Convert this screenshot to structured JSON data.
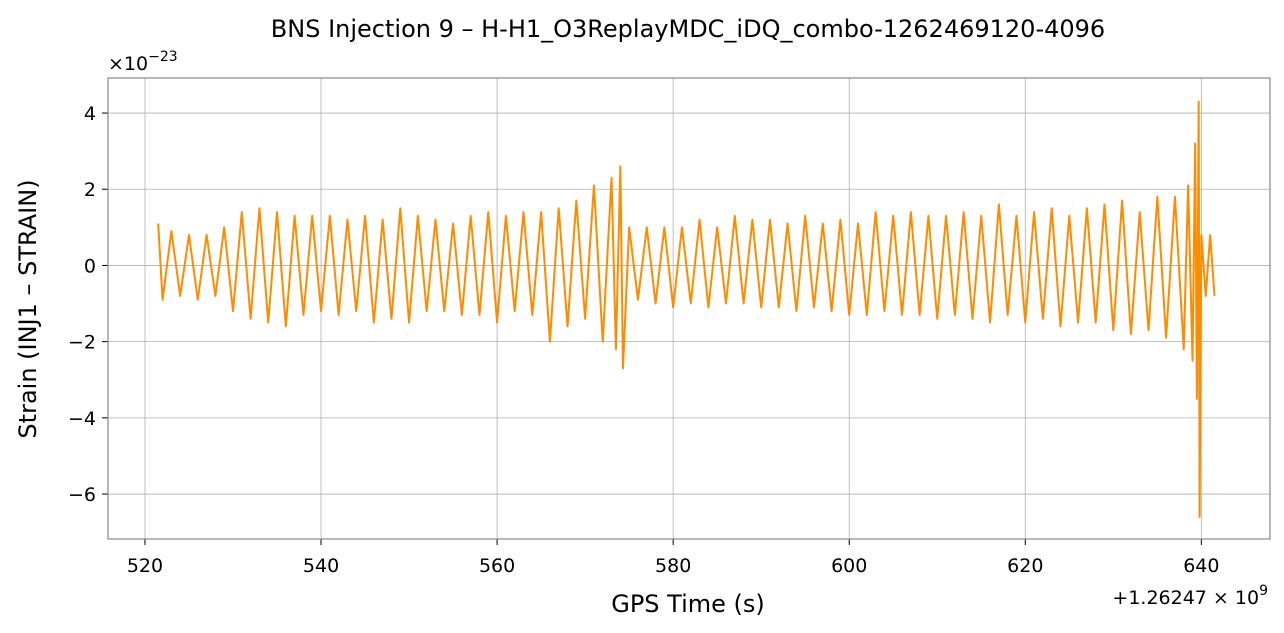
{
  "chart_data": {
    "type": "line",
    "title": "BNS Injection 9 – H-H1_O3ReplayMDC_iDQ_combo-1262469120-4096",
    "xlabel": "GPS Time (s)",
    "ylabel": "Strain (INJ1 – STRAIN)",
    "y_scale_label": {
      "base": "×10",
      "exponent": "−23"
    },
    "x_offset_label": {
      "base": "+1.26247 × 10",
      "exponent": "9"
    },
    "grid": true,
    "xlim": [
      515.8,
      647.8
    ],
    "ylim": [
      -7.18,
      4.92
    ],
    "xticks": [
      520,
      540,
      560,
      580,
      600,
      620,
      640
    ],
    "yticks": [
      {
        "value": -6,
        "label": "−6"
      },
      {
        "value": -4,
        "label": "−4"
      },
      {
        "value": -2,
        "label": "−2"
      },
      0,
      2,
      4
    ],
    "x": [
      521.5,
      522,
      523,
      524,
      525,
      526,
      527,
      528,
      529,
      530,
      531,
      532,
      533,
      534,
      535,
      536,
      537,
      538,
      539,
      540,
      541,
      542,
      543,
      544,
      545,
      546,
      547,
      548,
      549,
      550,
      551,
      552,
      553,
      554,
      555,
      556,
      557,
      558,
      559,
      560,
      561,
      562,
      563,
      564,
      565,
      566,
      567,
      568,
      569,
      570,
      571,
      572,
      573,
      573.5,
      574,
      574.3,
      575,
      576,
      577,
      578,
      579,
      580,
      581,
      582,
      583,
      584,
      585,
      586,
      587,
      588,
      589,
      590,
      591,
      592,
      593,
      594,
      595,
      596,
      597,
      598,
      599,
      600,
      601,
      602,
      603,
      604,
      605,
      606,
      607,
      608,
      609,
      610,
      611,
      612,
      613,
      614,
      615,
      616,
      617,
      618,
      619,
      620,
      621,
      622,
      623,
      624,
      625,
      626,
      627,
      628,
      629,
      630,
      631,
      632,
      633,
      634,
      635,
      636,
      637,
      638,
      638.5,
      639,
      639.3,
      639.5,
      639.7,
      639.8,
      640,
      640.5,
      641,
      641.5
    ],
    "series": [
      {
        "color": "#ff8c00",
        "values": [
          1.1,
          -0.9,
          0.9,
          -0.8,
          0.8,
          -0.9,
          0.8,
          -0.8,
          1.0,
          -1.2,
          1.4,
          -1.4,
          1.5,
          -1.5,
          1.4,
          -1.6,
          1.3,
          -1.3,
          1.3,
          -1.2,
          1.3,
          -1.3,
          1.2,
          -1.2,
          1.3,
          -1.5,
          1.2,
          -1.4,
          1.5,
          -1.5,
          1.3,
          -1.2,
          1.2,
          -1.2,
          1.1,
          -1.3,
          1.3,
          -1.3,
          1.4,
          -1.5,
          1.3,
          -1.2,
          1.4,
          -1.3,
          1.4,
          -2.0,
          1.5,
          -1.6,
          1.7,
          -1.4,
          2.1,
          -2.0,
          2.3,
          -2.2,
          2.6,
          -2.7,
          1.0,
          -0.9,
          1.0,
          -1.0,
          1.0,
          -1.1,
          1.0,
          -1.0,
          1.2,
          -1.1,
          1.0,
          -1.0,
          1.3,
          -1.0,
          1.2,
          -1.1,
          1.2,
          -1.1,
          1.1,
          -1.2,
          1.3,
          -1.1,
          1.1,
          -1.2,
          1.2,
          -1.3,
          1.1,
          -1.3,
          1.4,
          -1.2,
          1.3,
          -1.3,
          1.4,
          -1.3,
          1.3,
          -1.4,
          1.3,
          -1.3,
          1.4,
          -1.4,
          1.3,
          -1.5,
          1.6,
          -1.3,
          1.3,
          -1.5,
          1.4,
          -1.4,
          1.5,
          -1.6,
          1.3,
          -1.5,
          1.5,
          -1.5,
          1.6,
          -1.7,
          1.7,
          -1.8,
          1.4,
          -1.7,
          1.8,
          -1.9,
          1.8,
          -2.2,
          2.1,
          -2.5,
          3.2,
          -3.5,
          4.3,
          -6.6,
          0.8,
          -0.8,
          0.8,
          -0.8
        ]
      }
    ]
  }
}
